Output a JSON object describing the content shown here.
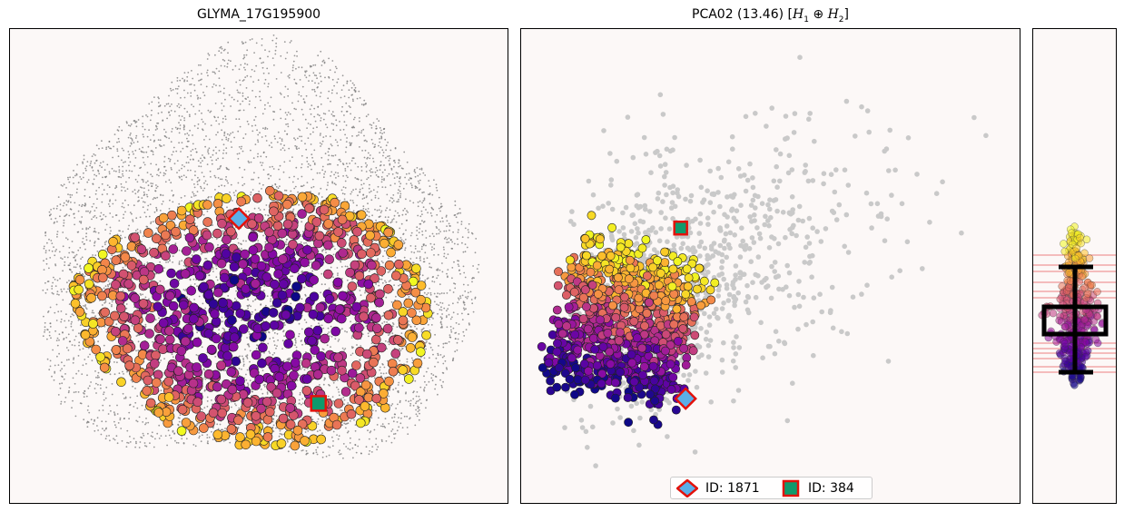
{
  "left_title": "GLYMA_17G195900",
  "mid_title_prefix": "PCA02 (13.46) [",
  "mid_title_h1": "H",
  "mid_title_sub1": "1",
  "mid_title_op": " ⊕ ",
  "mid_title_h2": "H",
  "mid_title_sub2": "2",
  "mid_title_suffix": "]",
  "legend": [
    {
      "label": "ID: 1871",
      "marker": "diamond",
      "fill": "#5aaee8",
      "edge": "#e3120b"
    },
    {
      "label": "ID: 384",
      "marker": "square",
      "fill": "#109a6c",
      "edge": "#e3120b"
    }
  ],
  "colors": {
    "panel_bg": "#fcf8f7",
    "background_points": "#777777",
    "pca_background": "#c9c9c9",
    "colormap": "plasma",
    "highlight_edge": "#e3120b",
    "red_lines": "#e65a5a"
  },
  "chart_data": [
    {
      "type": "scatter",
      "title": "GLYMA_17G195900",
      "xlabel": "",
      "ylabel": "",
      "grid": false,
      "ticks": "none",
      "colormap": "plasma",
      "highlights": [
        {
          "id": "1871",
          "marker": "diamond",
          "x": 0.46,
          "y": 0.4
        },
        {
          "id": "384",
          "marker": "square",
          "x": 0.62,
          "y": 0.79
        }
      ]
    },
    {
      "type": "scatter",
      "title": "PCA02 (13.46) [H1 ⊕ H2]",
      "xlabel": "",
      "ylabel": "",
      "grid": false,
      "ticks": "none",
      "colormap": "plasma",
      "legend_position": "bottom-center",
      "highlights": [
        {
          "id": "1871",
          "marker": "diamond",
          "x": 0.33,
          "y": 0.78
        },
        {
          "id": "384",
          "marker": "square",
          "x": 0.32,
          "y": 0.42
        }
      ]
    },
    {
      "type": "scatter",
      "title": "",
      "grid": false,
      "ticks": "none",
      "colormap": "plasma",
      "note": "vertical strip projection with horizontal red reference lines"
    }
  ]
}
